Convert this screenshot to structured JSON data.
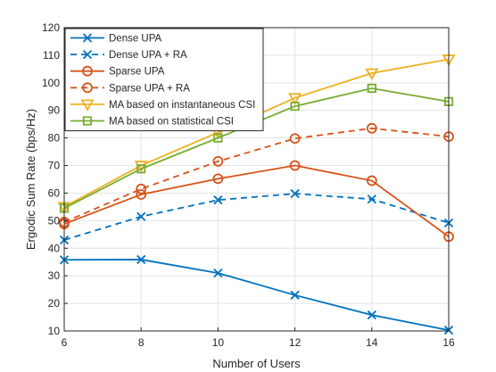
{
  "chart_data": {
    "type": "line",
    "title": "",
    "xlabel": "Number of Users",
    "ylabel": "Ergodic Sum Rate (bps/Hz)",
    "xlim": [
      6,
      16
    ],
    "ylim": [
      10,
      120
    ],
    "x_ticks": [
      "6",
      "8",
      "10",
      "12",
      "14",
      "16"
    ],
    "y_ticks": [
      "10",
      "20",
      "30",
      "40",
      "50",
      "60",
      "70",
      "80",
      "90",
      "100",
      "110",
      "120"
    ],
    "grid": true,
    "legend_position": "top-left",
    "x": [
      6,
      8,
      10,
      12,
      14,
      16
    ],
    "series": [
      {
        "name": "Dense UPA",
        "values": [
          35.8,
          35.9,
          31.0,
          23.0,
          15.8,
          10.3
        ],
        "color": "#0072BD",
        "line_style": "solid",
        "marker": "x"
      },
      {
        "name": "Dense UPA + RA",
        "values": [
          43.0,
          51.5,
          57.5,
          59.8,
          57.8,
          49.2
        ],
        "color": "#0072BD",
        "line_style": "dashed",
        "marker": "x"
      },
      {
        "name": "Sparse UPA",
        "values": [
          48.8,
          59.5,
          65.2,
          70.0,
          64.5,
          44.2
        ],
        "color": "#D95319",
        "line_style": "solid",
        "marker": "circle"
      },
      {
        "name": "Sparse UPA + RA",
        "values": [
          49.5,
          61.5,
          71.5,
          79.8,
          83.5,
          80.5
        ],
        "color": "#D95319",
        "line_style": "dashed",
        "marker": "circle"
      },
      {
        "name": "MA based on instantaneous CSI",
        "values": [
          55.0,
          70.0,
          82.0,
          94.5,
          103.5,
          108.5
        ],
        "color": "#EDB120",
        "line_style": "solid",
        "marker": "triangle-down"
      },
      {
        "name": "MA based on statistical CSI",
        "values": [
          54.5,
          68.8,
          80.0,
          91.5,
          98.0,
          93.2
        ],
        "color": "#77AC30",
        "line_style": "solid",
        "marker": "square"
      }
    ]
  }
}
